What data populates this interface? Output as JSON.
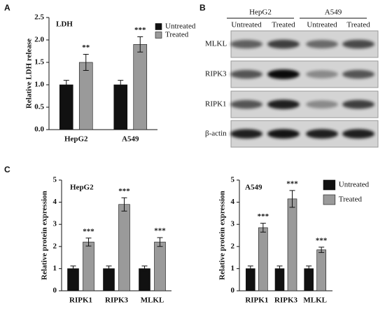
{
  "panels": [
    "A",
    "B",
    "C"
  ],
  "blot": {
    "groups": [
      "HepG2",
      "A549"
    ],
    "lanes": [
      "Untreated",
      "Treated",
      "Untreated",
      "Treated"
    ],
    "rows": [
      "MLKL",
      "RIPK3",
      "RIPK1",
      "β-actin"
    ]
  },
  "chart_data": [
    {
      "type": "bar",
      "title": "LDH",
      "y_label": "Relative LDH release",
      "categories": [
        "HepG2",
        "A549"
      ],
      "series": [
        {
          "name": "Untreated",
          "color": "#111111",
          "values": [
            1.0,
            1.0
          ],
          "errors": [
            0.1,
            0.1
          ]
        },
        {
          "name": "Treated",
          "color": "#9a9a9a",
          "values": [
            1.5,
            1.9
          ],
          "errors": [
            0.18,
            0.17
          ]
        }
      ],
      "annotations": [
        "**",
        "***"
      ],
      "ylim": [
        0,
        2.5
      ],
      "yticks": [
        {
          "value": 0,
          "label": "0.0"
        },
        0.5,
        {
          "value": 1,
          "label": "1.0"
        },
        1.5,
        {
          "value": 2,
          "label": "2.0"
        },
        2.5
      ],
      "legend": true
    },
    {
      "type": "bar",
      "title": "HepG2",
      "y_label": "Relative protein expression",
      "categories": [
        "RIPK1",
        "RIPK3",
        "MLKL"
      ],
      "series": [
        {
          "name": "Untreated",
          "color": "#111111",
          "values": [
            1,
            1,
            1
          ],
          "errors": [
            0.12,
            0.12,
            0.12
          ]
        },
        {
          "name": "Treated",
          "color": "#9a9a9a",
          "values": [
            2.2,
            3.9,
            2.2
          ],
          "errors": [
            0.18,
            0.3,
            0.2
          ]
        }
      ],
      "annotations": [
        "***",
        "***",
        "***"
      ],
      "ylim": [
        0,
        5
      ],
      "yticks": [
        0,
        1,
        2,
        3,
        4,
        5
      ],
      "legend": false
    },
    {
      "type": "bar",
      "title": "A549",
      "y_label": "Relative protein expression",
      "categories": [
        "RIPK1",
        "RIPK3",
        "MLKL"
      ],
      "series": [
        {
          "name": "Untreated",
          "color": "#111111",
          "values": [
            1,
            1,
            1
          ],
          "errors": [
            0.12,
            0.12,
            0.12
          ]
        },
        {
          "name": "Treated",
          "color": "#9a9a9a",
          "values": [
            2.85,
            4.15,
            1.85
          ],
          "errors": [
            0.2,
            0.38,
            0.12
          ]
        }
      ],
      "annotations": [
        "***",
        "***",
        "***"
      ],
      "ylim": [
        0,
        5
      ],
      "yticks": [
        0,
        1,
        2,
        3,
        4,
        5
      ],
      "legend": true
    }
  ]
}
